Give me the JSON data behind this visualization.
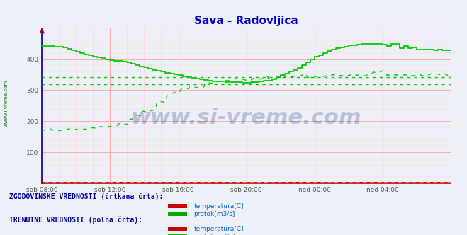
{
  "title": "Sava - Radovljica",
  "title_color": "#0000cc",
  "bg_color": "#eef0f8",
  "plot_bg_color": "#eef0f8",
  "xlim": [
    0,
    288
  ],
  "ylim": [
    0,
    500
  ],
  "yticks": [
    100,
    200,
    300,
    400
  ],
  "xtick_labels": [
    "sob 08:00",
    "sob 12:00",
    "sob 16:00",
    "sob 20:00",
    "ned 00:00",
    "ned 04:00"
  ],
  "xtick_positions": [
    0,
    48,
    96,
    144,
    192,
    240
  ],
  "grid_color_major": "#ffaaaa",
  "grid_color_minor": "#ffd0d0",
  "watermark": "www.si-vreme.com",
  "watermark_color": "#1a3a8a",
  "watermark_alpha": 0.25,
  "sidebar_text": "www.si-vreme.com",
  "sidebar_color": "#1a6a1a",
  "hist_pretok_color": "#00cc00",
  "curr_pretok_color": "#00cc00",
  "hist_temp_color": "#cc0000",
  "curr_temp_color": "#cc0000",
  "hline_hist_pretok_1": 343,
  "hline_hist_pretok_2": 320,
  "legend_text_color": "#0066cc",
  "bottom_text1": "ZGODOVINSKE VREDNOSTI (črtkana črta):",
  "bottom_text2": "TRENUTNE VREDNOSTI (polna črta):",
  "bottom_text_color": "#000099",
  "spine_color": "#0000aa",
  "arrow_color": "#cc0000",
  "tick_color": "#555555"
}
